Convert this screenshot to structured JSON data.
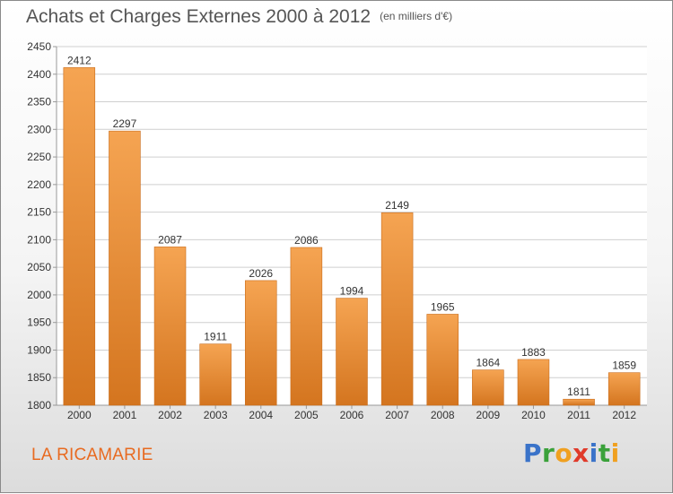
{
  "header": {
    "title": "Achats et Charges Externes 2000 à 2012",
    "unit": "(en milliers d'€)"
  },
  "footer": {
    "commune": "LA RICAMARIE",
    "logo_letters": [
      {
        "ch": "P",
        "color": "#3a73c9"
      },
      {
        "ch": "r",
        "color": "#3aa13a"
      },
      {
        "ch": "o",
        "color": "#f0a020"
      },
      {
        "ch": "x",
        "color": "#e03a2a"
      },
      {
        "ch": "i",
        "color": "#3a73c9"
      },
      {
        "ch": "t",
        "color": "#3aa13a"
      },
      {
        "ch": "i",
        "color": "#f0a020"
      }
    ]
  },
  "colors": {
    "bar_top": "#f5a452",
    "bar_bottom": "#d4751f",
    "grid": "#cfcfcf",
    "title": "#555555",
    "commune": "#e86a20"
  },
  "chart_data": {
    "type": "bar",
    "title": "Achats et Charges Externes 2000 à 2012",
    "unit": "(en milliers d'€)",
    "xlabel": "",
    "ylabel": "",
    "categories": [
      "2000",
      "2001",
      "2002",
      "2003",
      "2004",
      "2005",
      "2006",
      "2007",
      "2008",
      "2009",
      "2010",
      "2011",
      "2012"
    ],
    "values": [
      2412,
      2297,
      2087,
      1911,
      2026,
      2086,
      1994,
      2149,
      1965,
      1864,
      1883,
      1811,
      1859
    ],
    "ylim": [
      1800,
      2450
    ],
    "yticks": [
      1800,
      1850,
      1900,
      1950,
      2000,
      2050,
      2100,
      2150,
      2200,
      2250,
      2300,
      2350,
      2400,
      2450
    ],
    "grid": true,
    "legend": "none"
  }
}
